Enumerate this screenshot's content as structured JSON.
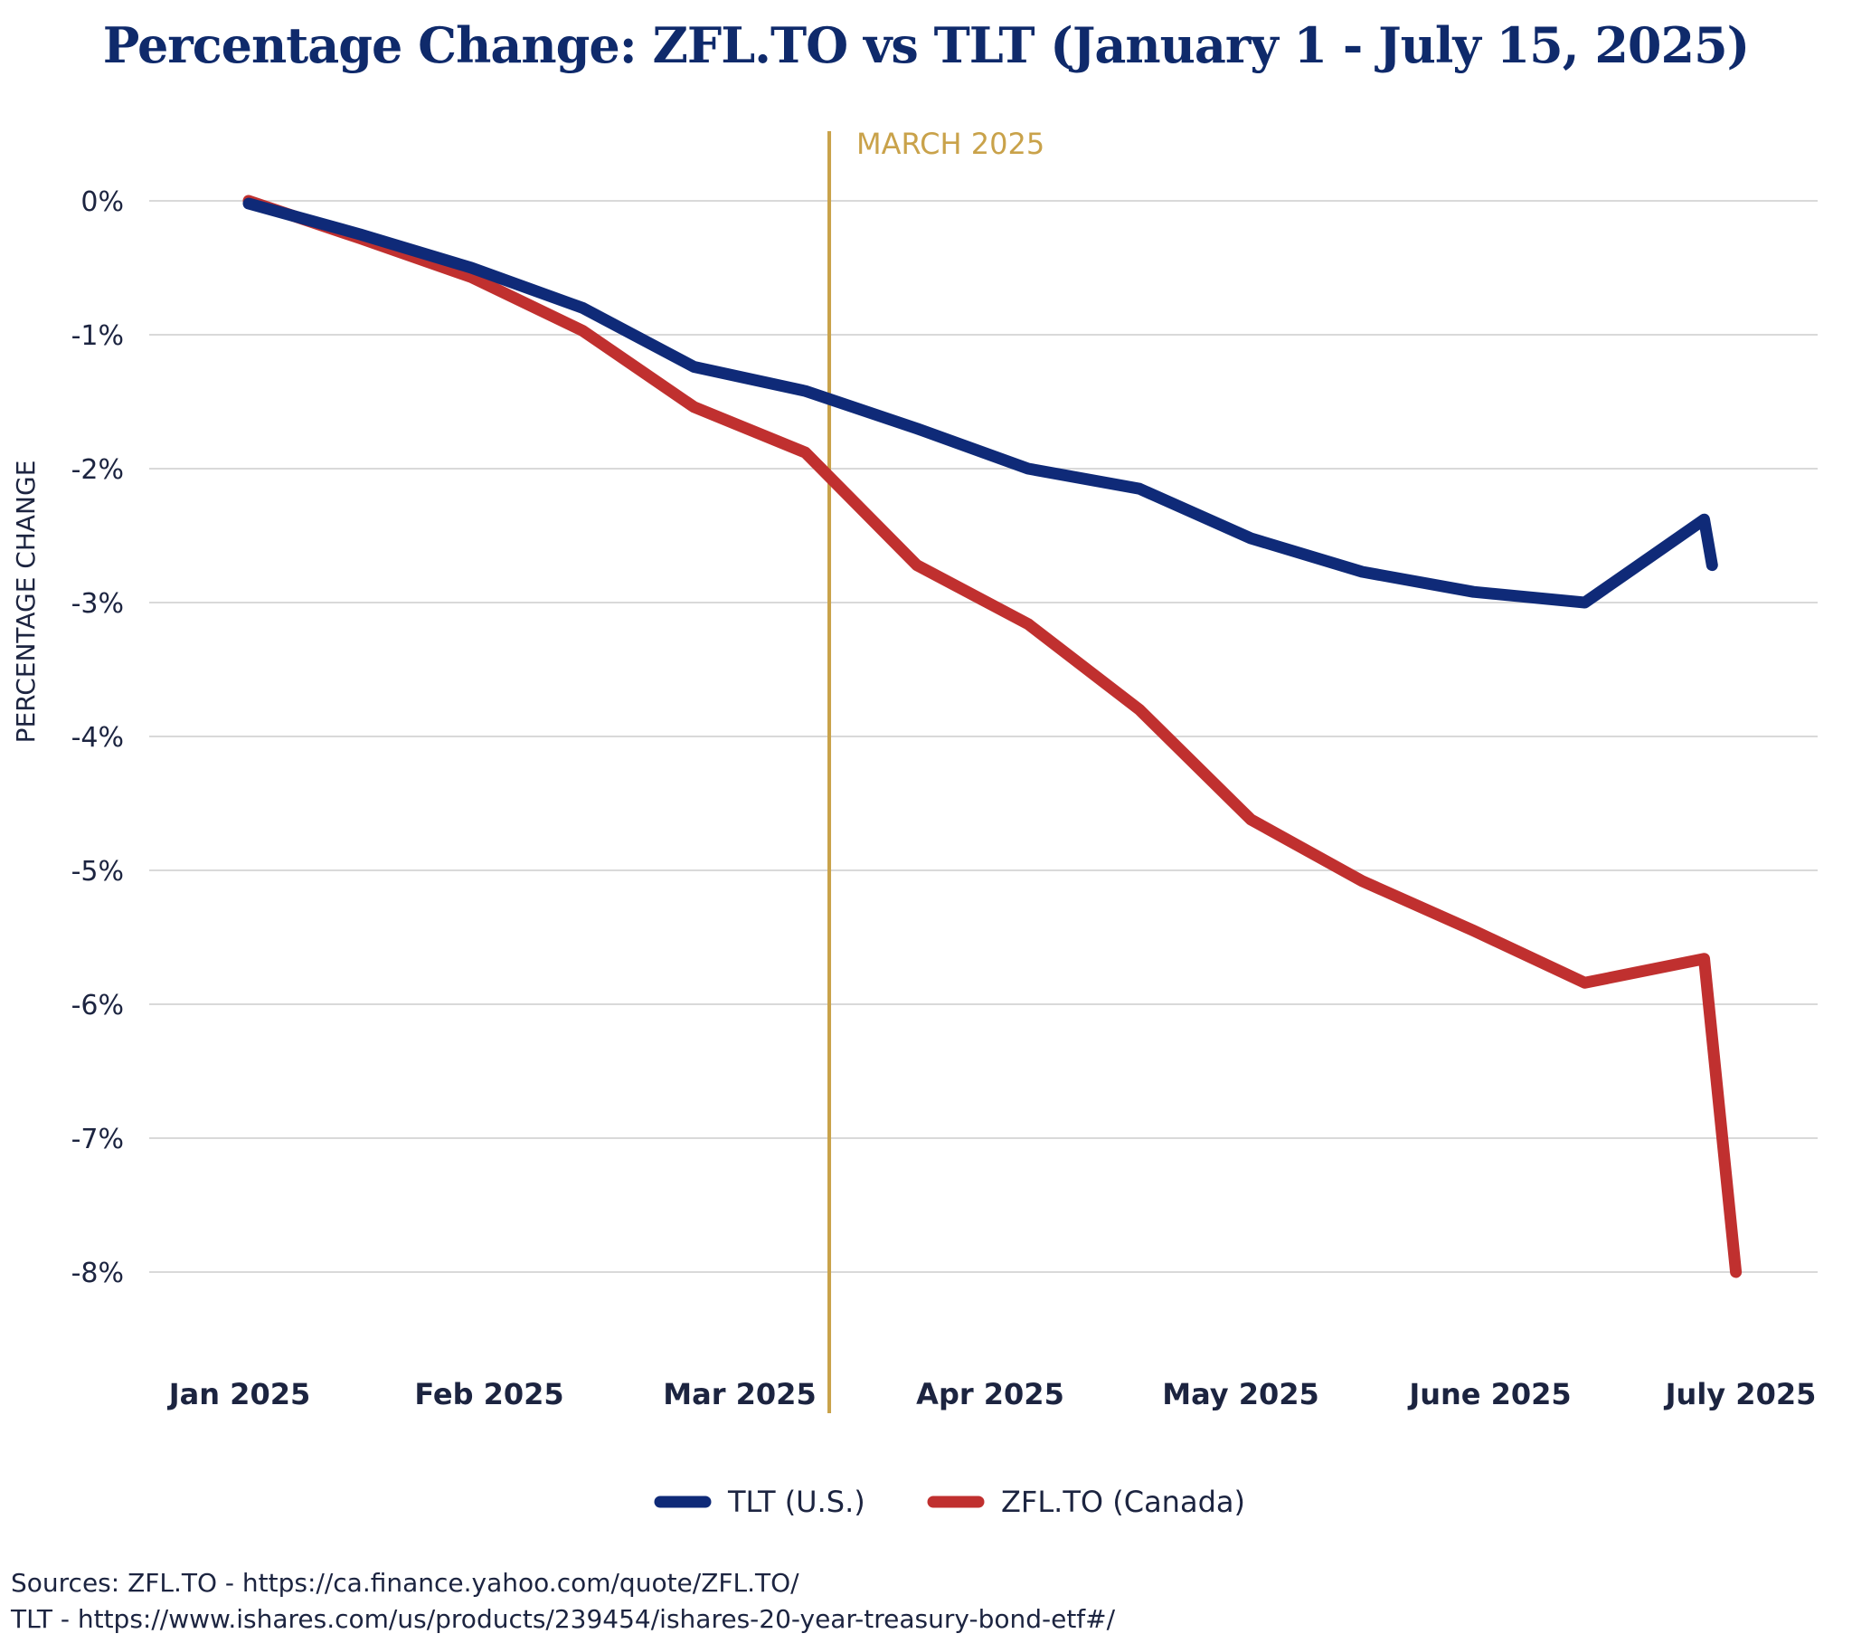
{
  "chart_data": {
    "type": "line",
    "title": "Percentage Change: ZFL.TO vs TLT (January 1 - July 15, 2025)",
    "xlabel": "",
    "ylabel": "PERCENTAGE CHANGE",
    "x_tick_labels": [
      "Jan 2025",
      "Feb 2025",
      "Mar 2025",
      "Apr 2025",
      "May 2025",
      "June 2025",
      "July 2025"
    ],
    "y_ticks": [
      0,
      -1,
      -2,
      -3,
      -4,
      -5,
      -6,
      -7,
      -8
    ],
    "y_tick_labels": [
      "0%",
      "-1%",
      "-2%",
      "-3%",
      "-4%",
      "-5%",
      "-6%",
      "-7%",
      "-8%"
    ],
    "ylim": [
      -8.8,
      0.5
    ],
    "xlim": [
      "2025-01-01",
      "2025-07-15"
    ],
    "grid": true,
    "legend_position": "bottom-center",
    "series": [
      {
        "name": "TLT (U.S.)",
        "color": "#0f2a78",
        "points": [
          {
            "x": "2025-01-01",
            "y": -0.02
          },
          {
            "x": "2025-01-15",
            "y": -0.25
          },
          {
            "x": "2025-01-29",
            "y": -0.5
          },
          {
            "x": "2025-02-12",
            "y": -0.8
          },
          {
            "x": "2025-02-26",
            "y": -1.24
          },
          {
            "x": "2025-03-12",
            "y": -1.42
          },
          {
            "x": "2025-03-26",
            "y": -1.7
          },
          {
            "x": "2025-04-09",
            "y": -2.0
          },
          {
            "x": "2025-04-23",
            "y": -2.15
          },
          {
            "x": "2025-05-07",
            "y": -2.52
          },
          {
            "x": "2025-05-21",
            "y": -2.77
          },
          {
            "x": "2025-06-04",
            "y": -2.92
          },
          {
            "x": "2025-06-18",
            "y": -3.0
          },
          {
            "x": "2025-07-03",
            "y": -2.38
          },
          {
            "x": "2025-07-04",
            "y": -2.72
          }
        ]
      },
      {
        "name": "ZFL.TO (Canada)",
        "color": "#c0302f",
        "points": [
          {
            "x": "2025-01-01",
            "y": 0.0
          },
          {
            "x": "2025-01-15",
            "y": -0.28
          },
          {
            "x": "2025-01-29",
            "y": -0.57
          },
          {
            "x": "2025-02-12",
            "y": -0.97
          },
          {
            "x": "2025-02-26",
            "y": -1.54
          },
          {
            "x": "2025-03-12",
            "y": -1.88
          },
          {
            "x": "2025-03-26",
            "y": -2.72
          },
          {
            "x": "2025-04-09",
            "y": -3.16
          },
          {
            "x": "2025-04-23",
            "y": -3.8
          },
          {
            "x": "2025-05-07",
            "y": -4.62
          },
          {
            "x": "2025-05-21",
            "y": -5.08
          },
          {
            "x": "2025-06-04",
            "y": -5.45
          },
          {
            "x": "2025-06-18",
            "y": -5.84
          },
          {
            "x": "2025-07-03",
            "y": -5.66
          },
          {
            "x": "2025-07-07",
            "y": -8.0
          }
        ]
      }
    ],
    "annotations": [
      {
        "type": "vertical-line",
        "x": "2025-03-15",
        "label": "MARCH 2025",
        "color": "#c9a24a"
      }
    ]
  },
  "sources": {
    "line1": "Sources: ZFL.TO - https://ca.finance.yahoo.com/quote/ZFL.TO/",
    "line2": "TLT - https://www.ishares.com/us/products/239454/ishares-20-year-treasury-bond-etf#/"
  },
  "colors": {
    "title": "#0f2a6b",
    "grid": "#d9d9d9",
    "text": "#1c2440"
  }
}
